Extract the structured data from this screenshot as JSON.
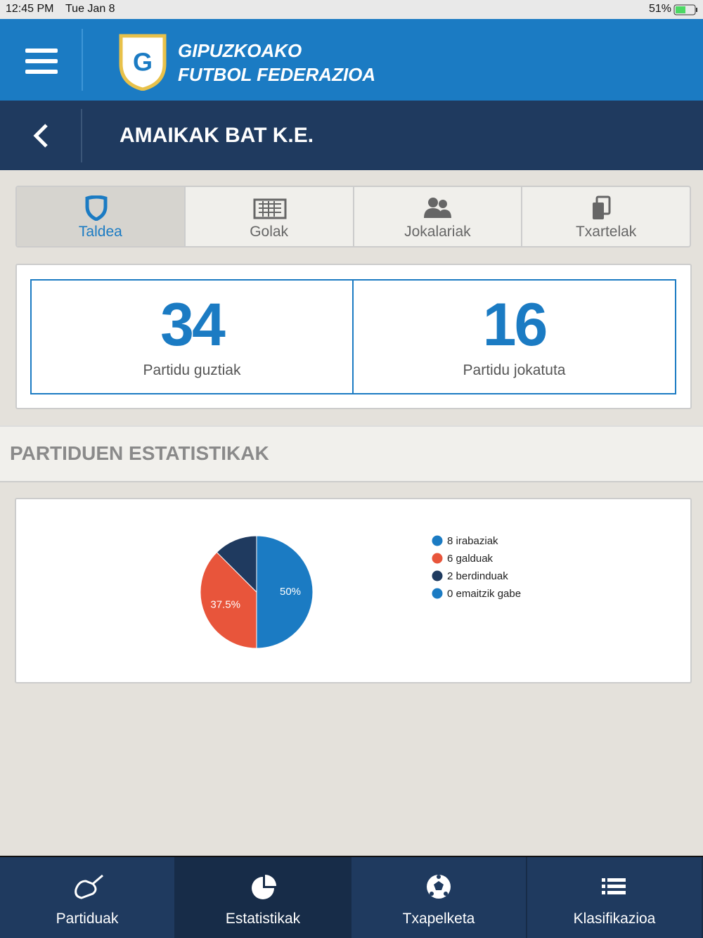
{
  "status_bar": {
    "time": "12:45 PM",
    "date": "Tue Jan 8",
    "battery": "51%"
  },
  "header": {
    "title_line1": "GIPUZKOAKO",
    "title_line2": "FUTBOL FEDERAZIOA"
  },
  "team_bar": {
    "name": "AMAIKAK BAT K.E."
  },
  "tabs": {
    "items": [
      "Taldea",
      "Golak",
      "Jokalariak",
      "Txartelak"
    ],
    "active": 0
  },
  "stats": [
    {
      "value": 34,
      "label": "Partidu guztiak"
    },
    {
      "value": 16,
      "label": "Partidu jokatuta"
    }
  ],
  "section_title": "PARTIDUEN ESTATISTIKAK",
  "chart_data": {
    "type": "pie",
    "categories": [
      "8 irabaziak",
      "6 galduak",
      "2 berdinduak",
      "0 emaitzik gabe"
    ],
    "values": [
      50,
      37.5,
      12.5,
      0
    ],
    "value_labels": [
      "50%",
      "37.5%",
      null,
      null
    ],
    "colors": [
      "#1b7bc3",
      "#e8553b",
      "#1f3a5f",
      "#1b7bc3"
    ]
  },
  "nav": {
    "items": [
      "Partiduak",
      "Estatistikak",
      "Txapelketa",
      "Klasifikazioa"
    ],
    "active": 1
  }
}
